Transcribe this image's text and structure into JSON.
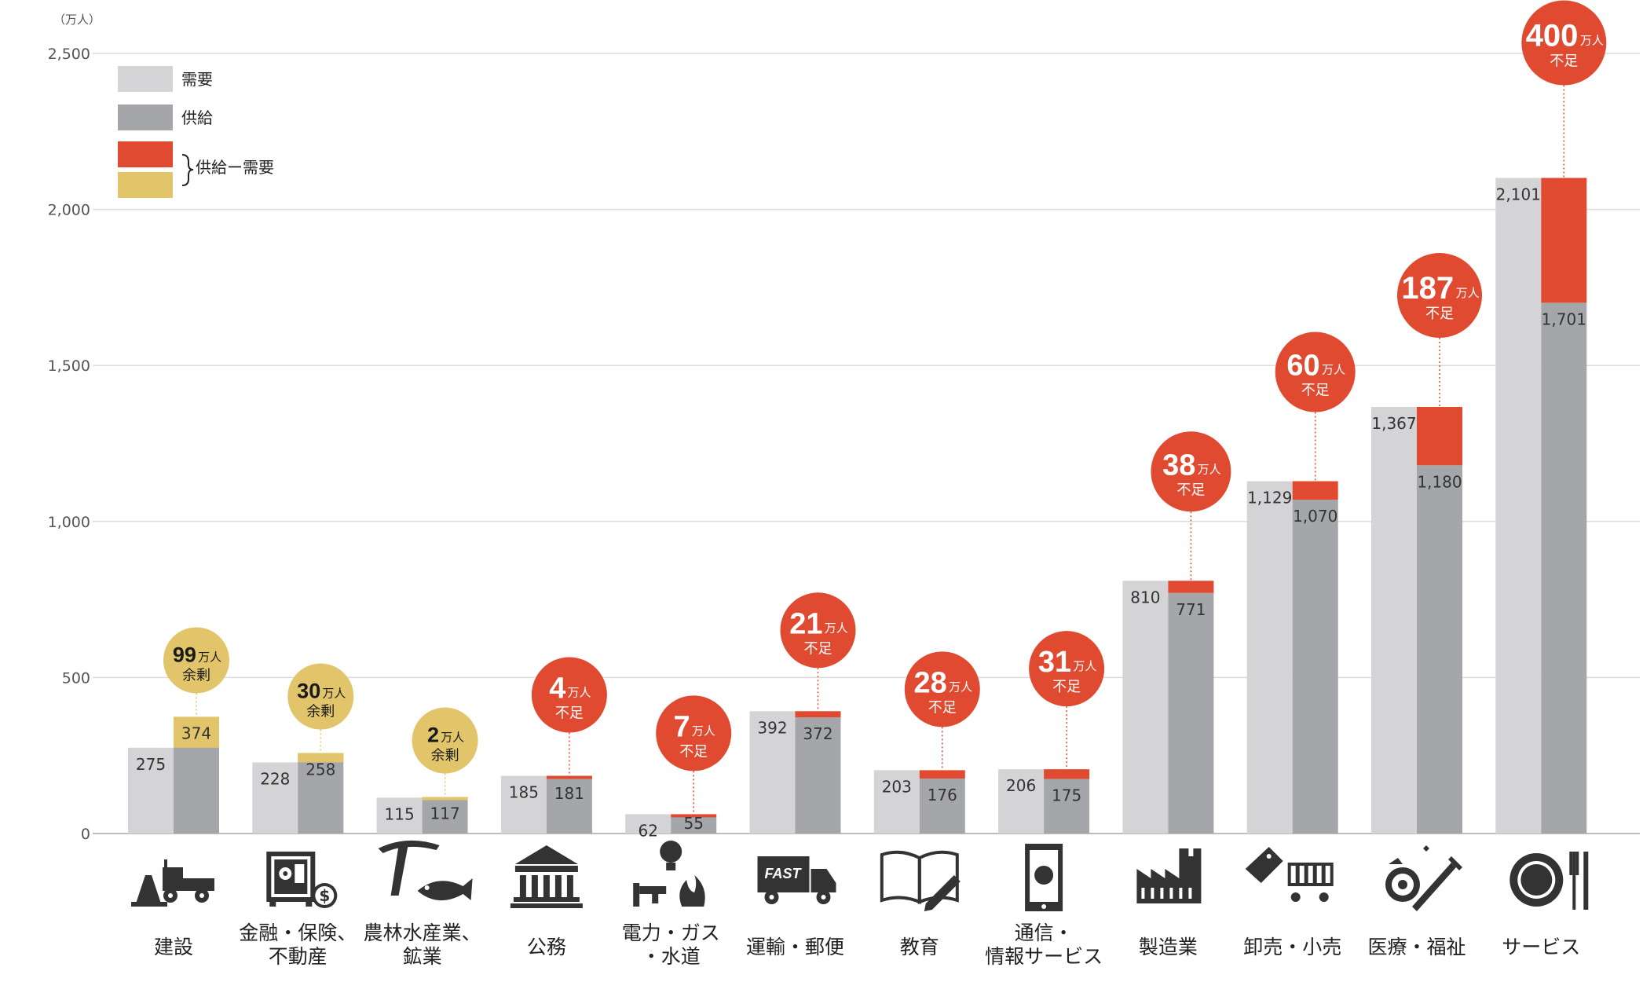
{
  "chart_data": {
    "type": "bar",
    "ylabel": "（万人）",
    "ylim": [
      0,
      2500
    ],
    "yticks": [
      0,
      500,
      1000,
      1500,
      2000,
      2500
    ],
    "ytick_labels": [
      "0",
      "500",
      "1,000",
      "1,500",
      "2,000",
      "2,500"
    ],
    "legend": {
      "demand": "需要",
      "supply": "供給",
      "diff": "供給ー需要"
    },
    "colors": {
      "demand": "#d4d4d6",
      "supply": "#a5a6aa",
      "shortage": "#e04a30",
      "surplus": "#e2c56a"
    },
    "categories": [
      {
        "name": "建設",
        "icon": "construction-icon",
        "demand": 275,
        "supply": 374,
        "demand_label": "275",
        "supply_label": "374",
        "bubble_num": "99",
        "bubble_unit": "万人",
        "bubble_word": "余剰",
        "kind": "surplus"
      },
      {
        "name": "金融・保険、不動産",
        "icon": "finance-icon",
        "demand": 228,
        "supply": 258,
        "demand_label": "228",
        "supply_label": "258",
        "bubble_num": "30",
        "bubble_unit": "万人",
        "bubble_word": "余剰",
        "kind": "surplus"
      },
      {
        "name": "農林水産業、鉱業",
        "icon": "agriculture-icon",
        "demand": 115,
        "supply": 117,
        "demand_label": "115",
        "supply_label": "117",
        "bubble_num": "2",
        "bubble_unit": "万人",
        "bubble_word": "余剰",
        "kind": "surplus"
      },
      {
        "name": "公務",
        "icon": "government-icon",
        "demand": 185,
        "supply": 181,
        "demand_label": "185",
        "supply_label": "181",
        "bubble_num": "4",
        "bubble_unit": "万人",
        "bubble_word": "不足",
        "kind": "shortage"
      },
      {
        "name": "電力・ガス・水道",
        "icon": "utilities-icon",
        "demand": 62,
        "supply": 55,
        "demand_label": "62",
        "supply_label": "55",
        "bubble_num": "7",
        "bubble_unit": "万人",
        "bubble_word": "不足",
        "kind": "shortage"
      },
      {
        "name": "運輸・郵便",
        "icon": "truck-icon",
        "demand": 392,
        "supply": 372,
        "demand_label": "392",
        "supply_label": "372",
        "bubble_num": "21",
        "bubble_unit": "万人",
        "bubble_word": "不足",
        "kind": "shortage"
      },
      {
        "name": "教育",
        "icon": "book-icon",
        "demand": 203,
        "supply": 176,
        "demand_label": "203",
        "supply_label": "176",
        "bubble_num": "28",
        "bubble_unit": "万人",
        "bubble_word": "不足",
        "kind": "shortage"
      },
      {
        "name": "通信・情報サービス",
        "icon": "smartphone-icon",
        "demand": 206,
        "supply": 175,
        "demand_label": "206",
        "supply_label": "175",
        "bubble_num": "31",
        "bubble_unit": "万人",
        "bubble_word": "不足",
        "kind": "shortage"
      },
      {
        "name": "製造業",
        "icon": "factory-icon",
        "demand": 810,
        "supply": 771,
        "demand_label": "810",
        "supply_label": "771",
        "bubble_num": "38",
        "bubble_unit": "万人",
        "bubble_word": "不足",
        "kind": "shortage"
      },
      {
        "name": "卸売・小売",
        "icon": "shopping-icon",
        "demand": 1129,
        "supply": 1070,
        "demand_label": "1,129",
        "supply_label": "1,070",
        "bubble_num": "60",
        "bubble_unit": "万人",
        "bubble_word": "不足",
        "kind": "shortage"
      },
      {
        "name": "医療・福祉",
        "icon": "medical-icon",
        "demand": 1367,
        "supply": 1180,
        "demand_label": "1,367",
        "supply_label": "1,180",
        "bubble_num": "187",
        "bubble_unit": "万人",
        "bubble_word": "不足",
        "kind": "shortage"
      },
      {
        "name": "サービス",
        "icon": "dining-icon",
        "demand": 2101,
        "supply": 1701,
        "demand_label": "2,101",
        "supply_label": "1,701",
        "bubble_num": "400",
        "bubble_unit": "万人",
        "bubble_word": "不足",
        "kind": "shortage"
      }
    ]
  }
}
